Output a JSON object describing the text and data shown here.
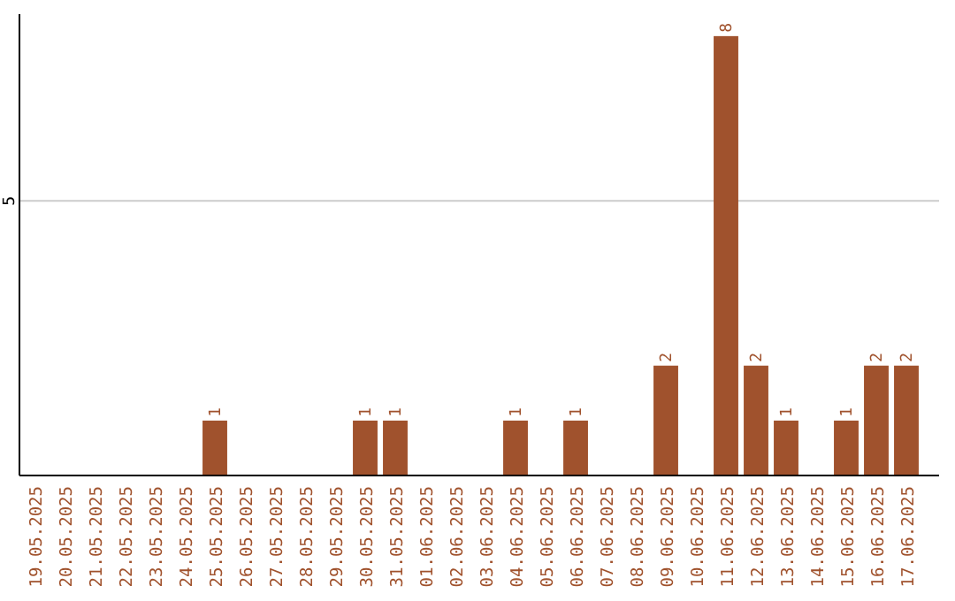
{
  "chart_data": {
    "type": "bar",
    "categories": [
      "19.05.2025",
      "20.05.2025",
      "21.05.2025",
      "22.05.2025",
      "23.05.2025",
      "24.05.2025",
      "25.05.2025",
      "26.05.2025",
      "27.05.2025",
      "28.05.2025",
      "29.05.2025",
      "30.05.2025",
      "31.05.2025",
      "01.06.2025",
      "02.06.2025",
      "03.06.2025",
      "04.06.2025",
      "05.06.2025",
      "06.06.2025",
      "07.06.2025",
      "08.06.2025",
      "09.06.2025",
      "10.06.2025",
      "11.06.2025",
      "12.06.2025",
      "13.06.2025",
      "14.06.2025",
      "15.06.2025",
      "16.06.2025",
      "17.06.2025"
    ],
    "values": [
      0,
      0,
      0,
      0,
      0,
      0,
      1,
      0,
      0,
      0,
      0,
      1,
      1,
      0,
      0,
      0,
      1,
      0,
      1,
      0,
      0,
      2,
      0,
      8,
      2,
      1,
      0,
      1,
      2,
      2
    ],
    "value_labels": [
      null,
      null,
      null,
      null,
      null,
      null,
      "1",
      null,
      null,
      null,
      null,
      "1",
      "1",
      null,
      null,
      null,
      "1",
      null,
      "1",
      null,
      null,
      "2",
      null,
      "8",
      "2",
      "1",
      null,
      "1",
      "2",
      "2"
    ],
    "color": "#a0522d",
    "ylim": [
      0,
      8.4
    ],
    "yticks": [
      5
    ],
    "grid": "y"
  }
}
